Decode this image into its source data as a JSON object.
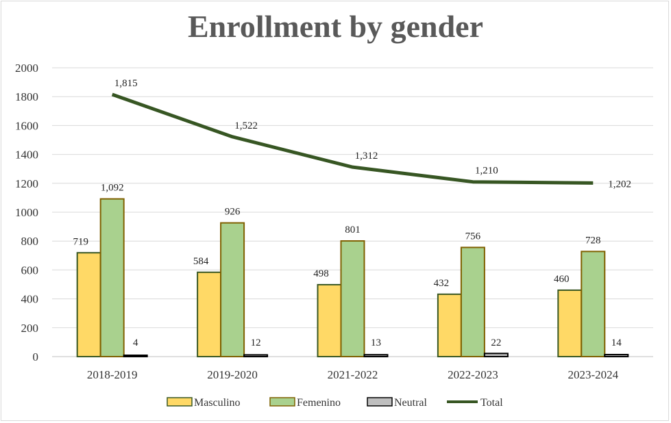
{
  "chart_data": {
    "type": "bar",
    "title": "Enrollment by gender",
    "categories": [
      "2018-2019",
      "2019-2020",
      "2021-2022",
      "2022-2023",
      "2023-2024"
    ],
    "ylim": [
      0,
      2000
    ],
    "yticks": [
      0,
      200,
      400,
      600,
      800,
      1000,
      1200,
      1400,
      1600,
      1800,
      2000
    ],
    "grid": true,
    "legend_position": "bottom",
    "series": [
      {
        "name": "Masculino",
        "type": "bar",
        "values": [
          719,
          584,
          498,
          432,
          460
        ],
        "labels": [
          "719",
          "584",
          "498",
          "432",
          "460"
        ],
        "fill": "#ffd966",
        "stroke": "#385723"
      },
      {
        "name": "Femenino",
        "type": "bar",
        "values": [
          1092,
          926,
          801,
          756,
          728
        ],
        "labels": [
          "1,092",
          "926",
          "801",
          "756",
          "728"
        ],
        "fill": "#a9d18e",
        "stroke": "#7f6000"
      },
      {
        "name": "Neutral",
        "type": "bar",
        "values": [
          4,
          12,
          13,
          22,
          14
        ],
        "labels": [
          "4",
          "12",
          "13",
          "22",
          "14"
        ],
        "fill": "#bfbfbf",
        "stroke": "#000000"
      },
      {
        "name": "Total",
        "type": "line",
        "values": [
          1815,
          1522,
          1312,
          1210,
          1202
        ],
        "labels": [
          "1,815",
          "1,522",
          "1,312",
          "1,210",
          "1,202"
        ],
        "stroke": "#375623"
      }
    ]
  }
}
